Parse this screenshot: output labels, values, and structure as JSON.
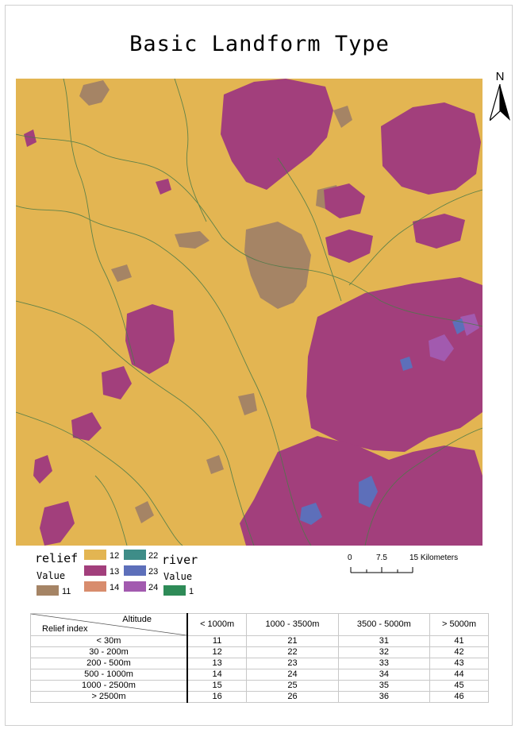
{
  "title": "Basic Landform Type",
  "north_label": "N",
  "legend": {
    "relief_title": "relief",
    "relief_value_label": "Value",
    "river_title": "river",
    "river_value_label": "Value",
    "items": [
      {
        "value": "11",
        "color": "#a58465"
      },
      {
        "value": "12",
        "color": "#e3b552"
      },
      {
        "value": "13",
        "color": "#a23f7c"
      },
      {
        "value": "14",
        "color": "#d88c6d"
      },
      {
        "value": "22",
        "color": "#3e8d88"
      },
      {
        "value": "23",
        "color": "#5d6fba"
      },
      {
        "value": "24",
        "color": "#a25aaf"
      }
    ],
    "river_item": {
      "value": "1",
      "color": "#2e8b57"
    }
  },
  "scale_bar": {
    "t0": "0",
    "t1": "7.5",
    "t2": "15 Kilometers"
  },
  "table": {
    "altitude_label": "Altitude",
    "relief_index_label": "Relief index",
    "columns": [
      "< 1000m",
      "1000 - 3500m",
      "3500 - 5000m",
      "> 5000m"
    ],
    "rows": [
      {
        "label": "< 30m",
        "values": [
          "11",
          "21",
          "31",
          "41"
        ]
      },
      {
        "label": "30 - 200m",
        "values": [
          "12",
          "22",
          "32",
          "42"
        ]
      },
      {
        "label": "200 - 500m",
        "values": [
          "13",
          "23",
          "33",
          "43"
        ]
      },
      {
        "label": "500 - 1000m",
        "values": [
          "14",
          "24",
          "34",
          "44"
        ]
      },
      {
        "label": "1000 - 2500m",
        "values": [
          "15",
          "25",
          "35",
          "45"
        ]
      },
      {
        "label": "> 2500m",
        "values": [
          "16",
          "26",
          "36",
          "46"
        ]
      }
    ]
  }
}
